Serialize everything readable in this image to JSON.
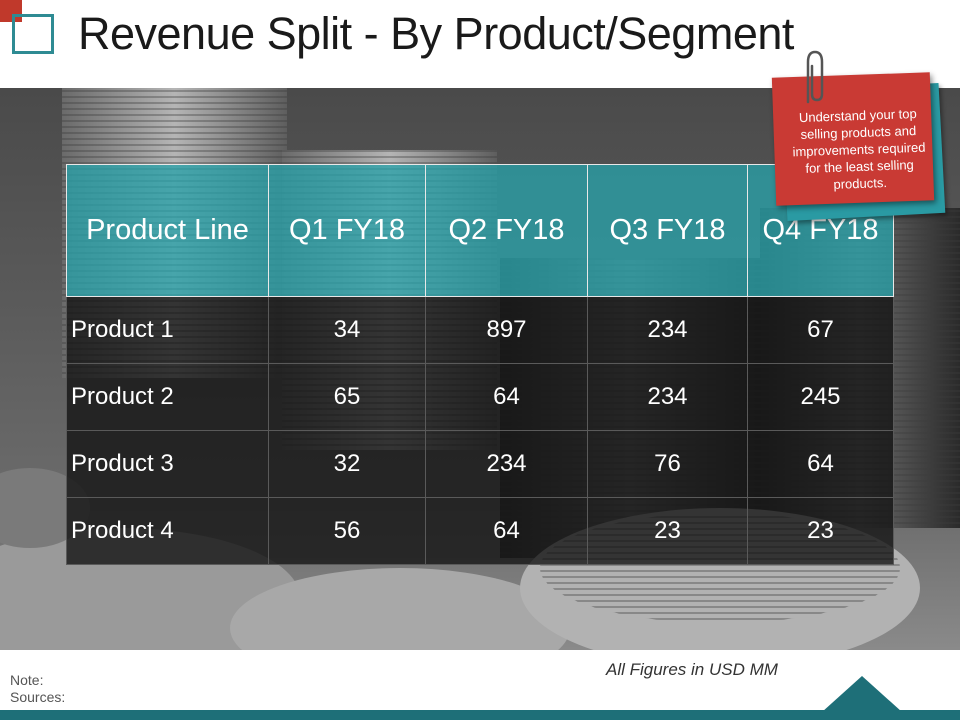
{
  "slide": {
    "title": "Revenue Split - By Product/Segment",
    "note_text": "Understand your top selling products and improvements required for the least selling products.",
    "footnote": "All Figures in USD MM",
    "note_label": "Note:",
    "sources_label": "Sources:"
  },
  "table": {
    "headers": [
      "Product Line",
      "Q1 FY18",
      "Q2 FY18",
      "Q3 FY18",
      "Q4 FY18"
    ],
    "rows": [
      {
        "label": "Product 1",
        "values": [
          "34",
          "897",
          "234",
          "67"
        ]
      },
      {
        "label": "Product 2",
        "values": [
          "65",
          "64",
          "234",
          "245"
        ]
      },
      {
        "label": "Product 3",
        "values": [
          "32",
          "234",
          "76",
          "64"
        ]
      },
      {
        "label": "Product 4",
        "values": [
          "56",
          "64",
          "23",
          "23"
        ]
      }
    ]
  },
  "colors": {
    "accent_teal": "#2e8b93",
    "accent_red": "#c0392b",
    "header_fill": "#28a0a8",
    "bar_dark_teal": "#1e6f78"
  },
  "icons": {
    "logo": "square-outline-icon",
    "clip": "paperclip-icon"
  }
}
